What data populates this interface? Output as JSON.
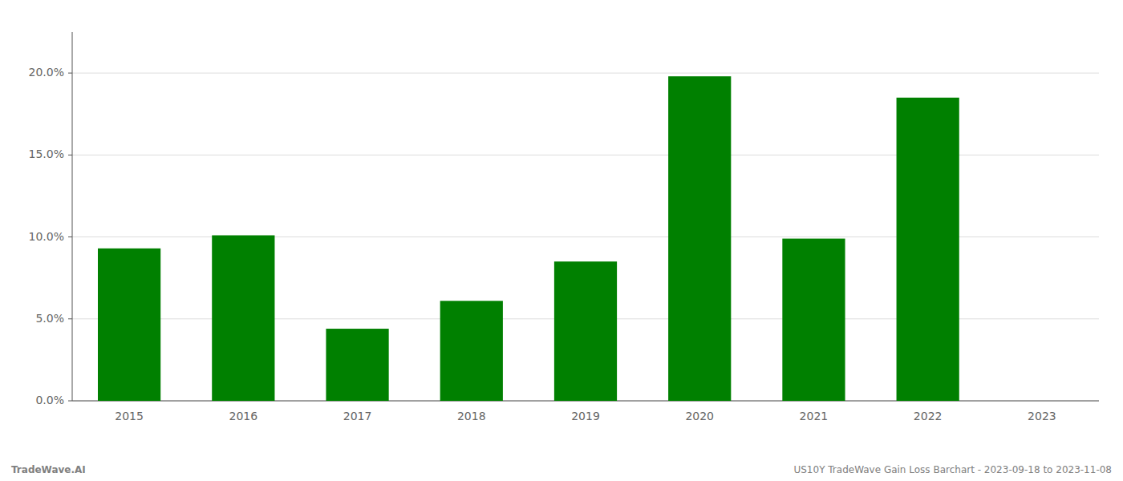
{
  "chart_data": {
    "type": "bar",
    "categories": [
      "2015",
      "2016",
      "2017",
      "2018",
      "2019",
      "2020",
      "2021",
      "2022",
      "2023"
    ],
    "values": [
      0.093,
      0.101,
      0.044,
      0.061,
      0.085,
      0.198,
      0.099,
      0.185,
      null
    ],
    "color": "#008000",
    "ylim": [
      0,
      0.225
    ],
    "yticks": [
      {
        "value": 0.0,
        "label": "0.0%"
      },
      {
        "value": 0.05,
        "label": "5.0%"
      },
      {
        "value": 0.1,
        "label": "10.0%"
      },
      {
        "value": 0.15,
        "label": "15.0%"
      },
      {
        "value": 0.2,
        "label": "20.0%"
      }
    ],
    "grid": true,
    "annotations": [
      "TradeWave.AI",
      "US10Y TradeWave Gain Loss Barchart - 2023-09-18 to 2023-11-08"
    ]
  }
}
